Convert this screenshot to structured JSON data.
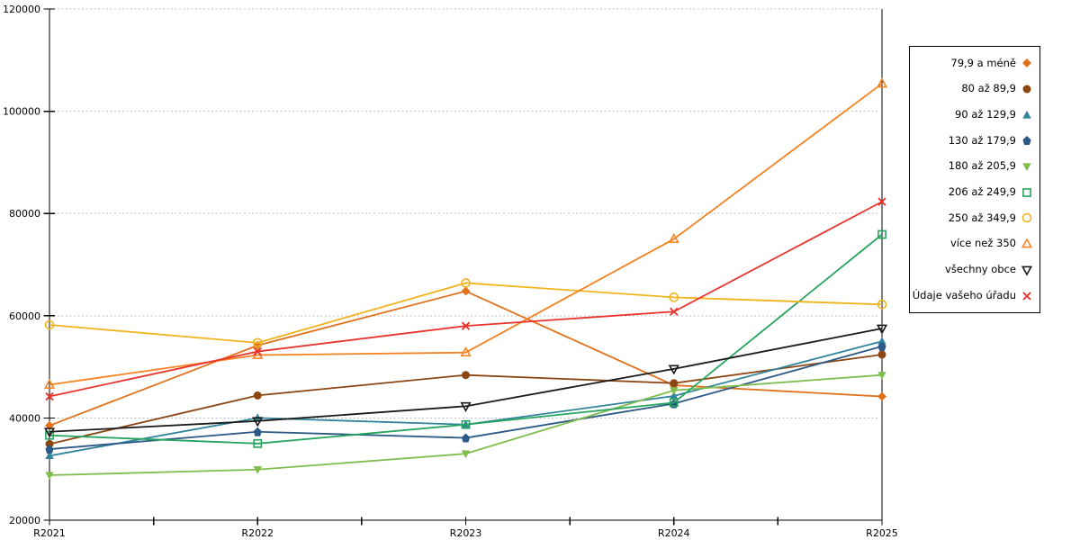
{
  "chart_data": {
    "type": "line",
    "title": "",
    "xlabel": "",
    "ylabel": "",
    "x_labels": [
      "R2021",
      "R2022",
      "R2023",
      "R2024",
      "R2025"
    ],
    "y_ticks": [
      20000,
      40000,
      60000,
      80000,
      100000,
      120000
    ],
    "y_tick_labels": [
      "20000",
      "40000",
      "60000",
      "80000",
      "100000",
      "120000"
    ],
    "ylim": [
      20000,
      120000
    ],
    "grid": "horizontal-dashed",
    "grid_color": "#BDBDBD",
    "axis_color": "#000000",
    "background_color": "#FFFFFF",
    "legend_position": "right",
    "series": [
      {
        "name": "79,9 a méně",
        "marker": "diamond",
        "fill": "filled",
        "color": "#E2711B",
        "values": [
          38500,
          54200,
          64800,
          46400,
          44200
        ]
      },
      {
        "name": "80 až 89,9",
        "marker": "circle",
        "fill": "filled",
        "color": "#8C4613",
        "values": [
          34900,
          44400,
          48400,
          46800,
          52400
        ]
      },
      {
        "name": "90 až 129,9",
        "marker": "triangle-up",
        "fill": "filled",
        "color": "#31849B",
        "values": [
          32600,
          40000,
          38700,
          44300,
          55000
        ]
      },
      {
        "name": "130 až 179,9",
        "marker": "pentagon",
        "fill": "filled",
        "color": "#2C5985",
        "values": [
          33900,
          37300,
          36100,
          42800,
          54000
        ]
      },
      {
        "name": "180 až 205,9",
        "marker": "triangle-down",
        "fill": "filled",
        "color": "#7FBE4D",
        "values": [
          28800,
          29900,
          33000,
          45400,
          48400
        ]
      },
      {
        "name": "206 až 249,9",
        "marker": "square",
        "fill": "hollow",
        "color": "#25A55F",
        "values": [
          36600,
          35000,
          38700,
          43000,
          75900
        ]
      },
      {
        "name": "250 až 349,9",
        "marker": "circle",
        "fill": "hollow",
        "color": "#F0B41E",
        "values": [
          58200,
          54700,
          66400,
          63600,
          62200
        ]
      },
      {
        "name": "více než 350",
        "marker": "triangle-up",
        "fill": "hollow",
        "color": "#F58220",
        "values": [
          46500,
          52300,
          52800,
          75000,
          105400
        ]
      },
      {
        "name": "všechny obce",
        "marker": "triangle-down",
        "fill": "hollow",
        "color": "#1A1A1A",
        "values": [
          37300,
          39400,
          42300,
          49600,
          57500
        ]
      },
      {
        "name": "Údaje vašeho úřadu",
        "marker": "x",
        "fill": "stroke",
        "color": "#E8342C",
        "values": [
          44200,
          53000,
          58000,
          60800,
          82300
        ]
      }
    ]
  }
}
